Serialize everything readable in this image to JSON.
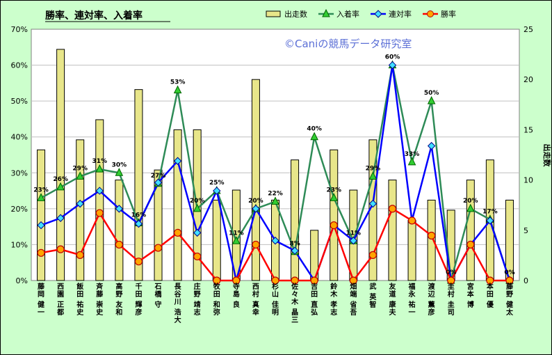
{
  "chart_data": {
    "type": "bar",
    "title": "勝率、連対率、入着率",
    "watermark": "©Caniの競馬データ研究室",
    "categories": [
      "藤岡 健一",
      "西園 正都",
      "飯田 祐史",
      "斉藤 崇史",
      "高野 友和",
      "千田 輝彦",
      "石橋 守",
      "長谷川 浩大",
      "庄野 靖志",
      "牧田 和弥",
      "寺島 良",
      "西村 真幸",
      "杉山 佳明",
      "佐々木 晶三",
      "吉田 直弘",
      "鈴木 孝志",
      "畑端 省吾",
      "武 英智",
      "友道 康夫",
      "福永 祐一",
      "渡辺 薫彦",
      "圭村 圭司",
      "宮本 博",
      "本田 優",
      "藤野 健太"
    ],
    "y_left": {
      "min": 0,
      "max": 70,
      "step": 10,
      "ticks": [
        "0%",
        "10%",
        "20%",
        "30%",
        "40%",
        "50%",
        "60%",
        "70%"
      ]
    },
    "y_right": {
      "min": 0,
      "max": 25,
      "step": 5,
      "ticks": [
        "0",
        "5",
        "10",
        "15",
        "20",
        "25"
      ],
      "label": "出走数"
    },
    "series": [
      {
        "name": "出走数",
        "kind": "bar",
        "axis": "right",
        "color": "#e8e68a",
        "values": [
          13,
          23,
          14,
          16,
          10,
          19,
          11,
          15,
          15,
          8,
          9,
          20,
          8,
          12,
          5,
          13,
          9,
          14,
          10,
          6,
          8,
          7,
          10,
          12,
          8
        ]
      },
      {
        "name": "入着率",
        "kind": "line",
        "axis": "left",
        "color": "#2e8b57",
        "marker": "triangle",
        "values": [
          23,
          26,
          29,
          31,
          30,
          16,
          27,
          53,
          20,
          25,
          11,
          20,
          22,
          8,
          40,
          23,
          11,
          29,
          60,
          33,
          50,
          0,
          20,
          17,
          0
        ],
        "labels": [
          "23%",
          "26%",
          "29%",
          "31%",
          "30%",
          "16%",
          "27%",
          "53%",
          "20%",
          "25%",
          "11%",
          "20%",
          "22%",
          "8%",
          "40%",
          "23%",
          "11%",
          "29%",
          "60%",
          "33%",
          "50%",
          "0%",
          "20%",
          "17%",
          "0%"
        ]
      },
      {
        "name": "連対率",
        "kind": "line",
        "axis": "left",
        "color": "#0000ff",
        "marker": "diamond",
        "values": [
          15.4,
          17.4,
          21.4,
          25,
          20,
          15.8,
          27.3,
          33.3,
          13.3,
          25,
          0,
          20,
          11.1,
          8.3,
          0,
          15.4,
          11.1,
          21.4,
          60,
          16.7,
          37.5,
          0,
          10,
          16.7,
          0
        ]
      },
      {
        "name": "勝率",
        "kind": "line",
        "axis": "left",
        "color": "#ff0000",
        "marker": "circle",
        "values": [
          7.7,
          8.7,
          7.1,
          18.8,
          10,
          5.3,
          9.1,
          13.3,
          6.7,
          0,
          0,
          10,
          0,
          0,
          0,
          15.4,
          0,
          7.1,
          20,
          16.7,
          12.5,
          0,
          10,
          0,
          0
        ]
      }
    ],
    "legend": {
      "position": "top-right"
    },
    "grid": true
  }
}
